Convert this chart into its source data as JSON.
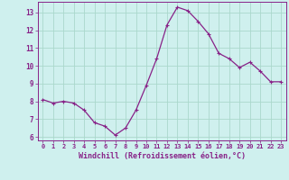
{
  "x": [
    0,
    1,
    2,
    3,
    4,
    5,
    6,
    7,
    8,
    9,
    10,
    11,
    12,
    13,
    14,
    15,
    16,
    17,
    18,
    19,
    20,
    21,
    22,
    23
  ],
  "y": [
    8.1,
    7.9,
    8.0,
    7.9,
    7.5,
    6.8,
    6.6,
    6.1,
    6.5,
    7.5,
    8.9,
    10.4,
    12.3,
    13.3,
    13.1,
    12.5,
    11.8,
    10.7,
    10.4,
    9.9,
    10.2,
    9.7,
    9.1,
    9.1
  ],
  "line_color": "#882288",
  "marker": "+",
  "marker_size": 3.5,
  "marker_lw": 0.8,
  "bg_color": "#cff0ee",
  "grid_color": "#aad8cc",
  "xlabel": "Windchill (Refroidissement éolien,°C)",
  "ylim": [
    5.8,
    13.6
  ],
  "xlim": [
    -0.5,
    23.5
  ],
  "yticks": [
    6,
    7,
    8,
    9,
    10,
    11,
    12,
    13
  ],
  "xticks": [
    0,
    1,
    2,
    3,
    4,
    5,
    6,
    7,
    8,
    9,
    10,
    11,
    12,
    13,
    14,
    15,
    16,
    17,
    18,
    19,
    20,
    21,
    22,
    23
  ],
  "axis_color": "#882288",
  "tick_color": "#882288",
  "label_color": "#882288",
  "tick_labelsize": 5.0,
  "xlabel_fontsize": 6.0,
  "linewidth": 0.9
}
